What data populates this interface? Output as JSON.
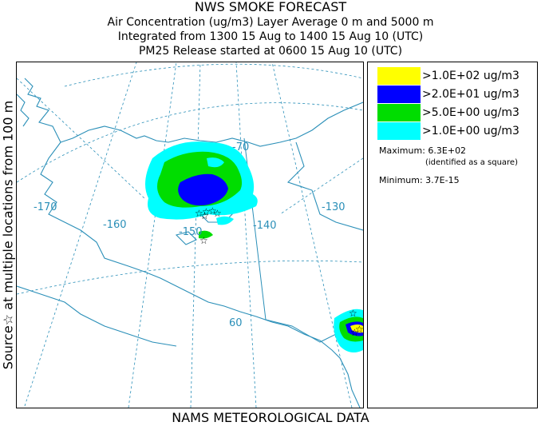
{
  "title": {
    "line1": "NWS SMOKE FORECAST",
    "line2": "Air Concentration (ug/m3) Layer Average    0 m and  5000 m",
    "line3": "Integrated from 1300 15 Aug to 1400 15 Aug 10 (UTC)",
    "line4": "PM25 Release started at 0600 15 Aug 10 (UTC)"
  },
  "side_label": "Source☆ at multiple locations  from   100 m",
  "bottom_label": "NAMS METEOROLOGICAL DATA",
  "map": {
    "longitude_labels": [
      "-170",
      "-160",
      "-150",
      "-140",
      "-130"
    ],
    "latitude_labels": [
      "-70",
      "60"
    ],
    "colors": {
      "coast": "#2a8fb8",
      "grid": "#2a8fb8"
    }
  },
  "legend": {
    "items": [
      {
        "label": ">1.0E+02 ug/m3",
        "color": "#ffff00"
      },
      {
        "label": ">2.0E+01 ug/m3",
        "color": "#0000ff"
      },
      {
        "label": ">5.0E+00 ug/m3",
        "color": "#00dd00"
      },
      {
        "label": ">1.0E+00 ug/m3",
        "color": "#00ffff"
      }
    ],
    "maximum": "Maximum: 6.3E+02",
    "maximum_note": "(identified as a square)",
    "minimum": "Minimum: 3.7E-15"
  }
}
